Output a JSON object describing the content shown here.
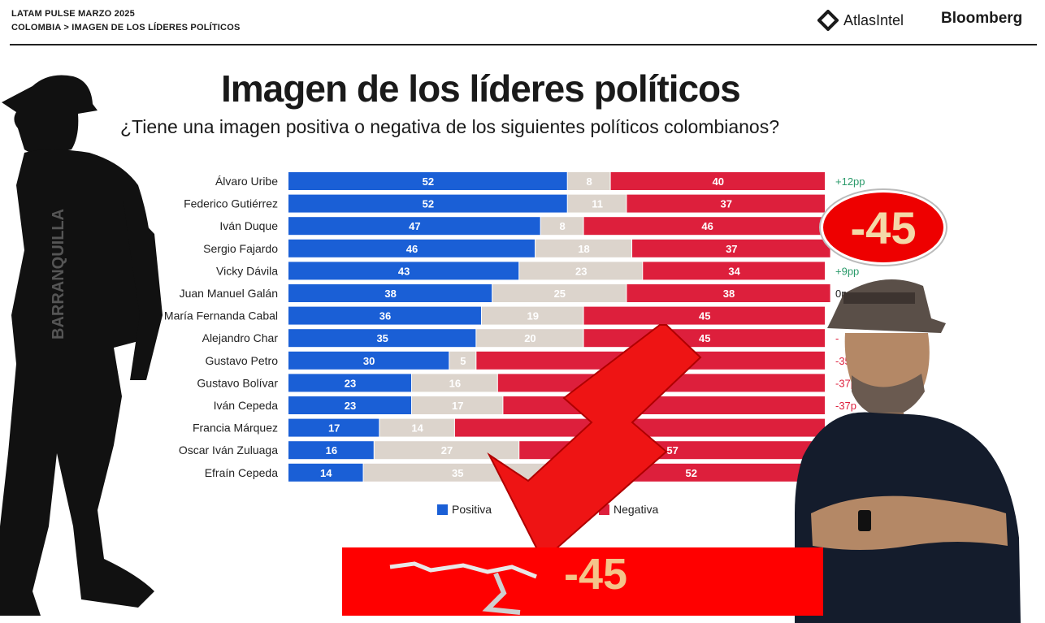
{
  "header": {
    "line1": "LATAM PULSE MARZO 2025",
    "line2": "COLOMBIA > IMAGEN DE LOS LÍDERES POLÍTICOS",
    "brand_atlas": "AtlasIntel",
    "brand_bloomberg": "Bloomberg"
  },
  "colors": {
    "positive": "#1a5fd6",
    "neutral": "#dcd4cc",
    "negative": "#dd1f3c",
    "change_text": "#2a9a6a"
  },
  "overlay": {
    "bubble_value": "-45",
    "bottom_value": "-45"
  },
  "chart_data": {
    "type": "bar",
    "orientation": "horizontal-stacked-100",
    "title": "Imagen de los líderes políticos",
    "subtitle": "¿Tiene una imagen positiva o negativa de los siguientes políticos colombianos?",
    "categories": [
      "Álvaro Uribe",
      "Federico Gutiérrez",
      "Iván Duque",
      "Sergio Fajardo",
      "Vicky Dávila",
      "Juan Manuel Galán",
      "María Fernanda Cabal",
      "Alejandro Char",
      "Gustavo Petro",
      "Gustavo Bolívar",
      "Iván Cepeda",
      "Francia Márquez",
      "Oscar Iván Zuluaga",
      "Efraín Cepeda"
    ],
    "series": [
      {
        "name": "Positiva",
        "values": [
          52,
          52,
          47,
          46,
          43,
          38,
          36,
          35,
          30,
          23,
          23,
          17,
          16,
          14
        ]
      },
      {
        "name": "",
        "values": [
          8,
          11,
          8,
          18,
          23,
          25,
          19,
          20,
          5,
          16,
          17,
          14,
          27,
          35
        ]
      },
      {
        "name": "Negativa",
        "values": [
          40,
          37,
          46,
          37,
          34,
          38,
          45,
          45,
          65,
          61,
          60,
          69,
          57,
          52
        ]
      }
    ],
    "labels_positive": [
      "52",
      "52",
      "47",
      "46",
      "43",
      "38",
      "36",
      "35",
      "30",
      "23",
      "23",
      "17",
      "16",
      "14"
    ],
    "labels_neutral": [
      "8",
      "11",
      "8",
      "18",
      "23",
      "25",
      "19",
      "20",
      "5",
      "16",
      "17",
      "14",
      "27",
      "35"
    ],
    "labels_negative": [
      "40",
      "37",
      "46",
      "37",
      "34",
      "38",
      "45",
      "45",
      "65",
      "",
      "",
      "",
      "57",
      "52"
    ],
    "change_labels": [
      "+12pp",
      "",
      "",
      "",
      "+9pp",
      "0p",
      "-",
      "-",
      "-35",
      "-37p",
      "-37p",
      "",
      "",
      ""
    ],
    "legend": [
      "Positiva",
      "Negativa"
    ],
    "legend_position": "bottom",
    "xlim": [
      0,
      100
    ]
  }
}
